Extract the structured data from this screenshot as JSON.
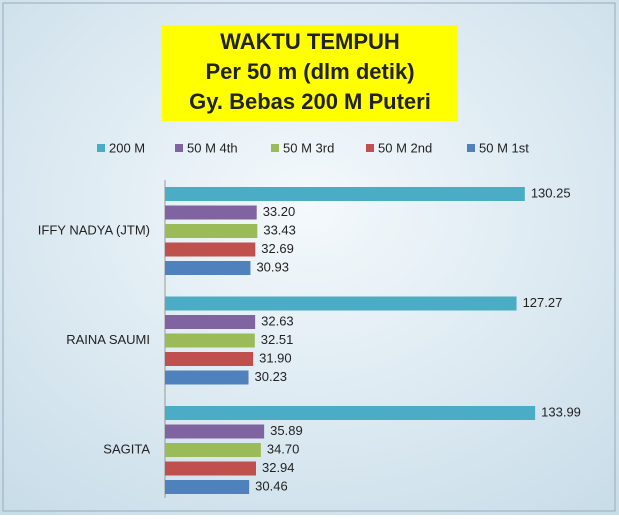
{
  "chart_data": {
    "type": "hbar",
    "title": [
      "WAKTU TEMPUH",
      "Per 50 m (dlm detik)",
      "Gy. Bebas 200 M Puteri"
    ],
    "categories": [
      "IFFY NADYA (JTM)",
      "RAINA SAUMI",
      "SAGITA"
    ],
    "series": [
      {
        "name": "200 M",
        "color": "#4bacc6",
        "values": [
          130.25,
          127.27,
          133.99
        ],
        "value_labels": [
          "130.25",
          "127.27",
          "133.99"
        ]
      },
      {
        "name": "50 M 4th",
        "color": "#8064a2",
        "values": [
          33.2,
          32.63,
          35.89
        ],
        "value_labels": [
          "33.20",
          "32.63",
          "35.89"
        ]
      },
      {
        "name": "50 M 3rd",
        "color": "#9bbb59",
        "values": [
          33.43,
          32.51,
          34.7
        ],
        "value_labels": [
          "33.43",
          "32.51",
          "34.70"
        ]
      },
      {
        "name": "50 M 2nd",
        "color": "#c0504d",
        "values": [
          32.69,
          31.9,
          32.94
        ],
        "value_labels": [
          "32.69",
          "31.90",
          "32.94"
        ]
      },
      {
        "name": "50 M 1st",
        "color": "#4f81bd",
        "values": [
          30.93,
          30.23,
          30.46
        ],
        "value_labels": [
          "30.93",
          "30.23",
          "30.46"
        ]
      }
    ],
    "xlim": [
      0,
      160
    ]
  }
}
